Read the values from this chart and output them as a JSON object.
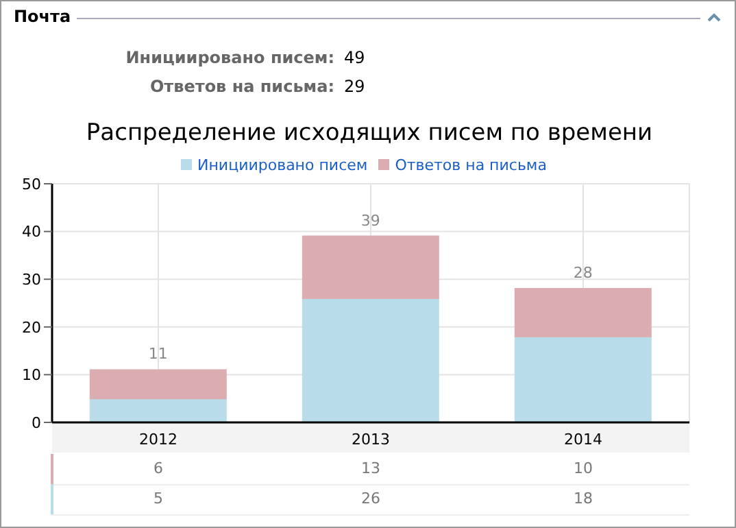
{
  "chart_data": {
    "type": "bar",
    "title": "Распределение исходящих писем по времени",
    "annotations": [
      "Почта",
      "Инициировано писем:  49",
      "Ответов на письма:  29"
    ],
    "categories": [
      "2012",
      "2013",
      "2014"
    ],
    "series": [
      {
        "name": "Инициировано писем",
        "color": "#b8dce9",
        "values": [
          5,
          26,
          18
        ]
      },
      {
        "name": "Ответов на письма",
        "color": "#dbadb0",
        "values": [
          6,
          13,
          10
        ]
      }
    ],
    "stacked": true,
    "totals": [
      "11",
      "39",
      "28"
    ],
    "data_labels": true,
    "ylim": [
      0,
      50
    ],
    "yticks": [
      0,
      10,
      20,
      30,
      40,
      50
    ],
    "grid": true,
    "legend": "top"
  }
}
